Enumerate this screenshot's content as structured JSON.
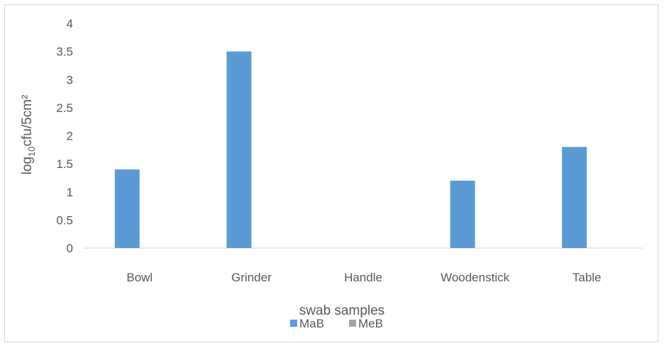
{
  "chart_data": {
    "type": "bar",
    "categories": [
      "Bowl",
      "Grinder",
      "Handle",
      "Woodenstick",
      "Table"
    ],
    "series": [
      {
        "name": "MaB",
        "values": [
          1.4,
          3.5,
          0,
          1.2,
          1.8
        ],
        "color": "#5B9BD5"
      },
      {
        "name": "MeB",
        "values": [
          0,
          0,
          0,
          0,
          0
        ],
        "color": "#A5A5A5"
      }
    ],
    "xlabel": "swab samples",
    "ylabel_parts": {
      "base": "log",
      "sub": "10",
      "rest": "cfu/5cm²"
    },
    "ylim": [
      0,
      4
    ],
    "yticks": [
      "0",
      "0.5",
      "1",
      "1.5",
      "2",
      "2.5",
      "3",
      "3.5",
      "4"
    ],
    "grid": false,
    "legend": "bottom"
  }
}
